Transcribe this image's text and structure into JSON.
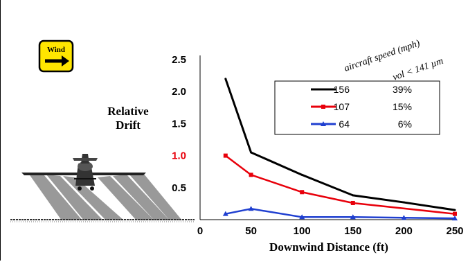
{
  "wind_badge": {
    "label": "Wind",
    "fill": "#ffe600",
    "arrow_icon": "arrow-right-icon"
  },
  "chart_data": {
    "type": "line",
    "xlabel": "Downwind Distance (ft)",
    "ylabel_lines": [
      "Relative",
      "Drift"
    ],
    "xlim": [
      0,
      250
    ],
    "ylim": [
      0,
      2.5
    ],
    "x_ticks": [
      {
        "value": 0,
        "label": "0"
      },
      {
        "value": 50,
        "label": "50"
      },
      {
        "value": 100,
        "label": "100"
      },
      {
        "value": 150,
        "label": "150"
      },
      {
        "value": 200,
        "label": "200"
      },
      {
        "value": 250,
        "label": "250"
      }
    ],
    "y_ticks": [
      {
        "value": 0.5,
        "label": "0.5",
        "color": "#000000"
      },
      {
        "value": 1.0,
        "label": "1.0",
        "color": "#e8000b"
      },
      {
        "value": 1.5,
        "label": "1.5",
        "color": "#000000"
      },
      {
        "value": 2.0,
        "label": "2.0",
        "color": "#000000"
      },
      {
        "value": 2.5,
        "label": "2.5",
        "color": "#000000"
      }
    ],
    "legend_header": [
      "aircraft speed (mph)",
      "vol < 141 µm"
    ],
    "legend_placement": "top-right",
    "series": [
      {
        "name": "156",
        "pct": "39%",
        "color": "#000000",
        "marker": "none",
        "x": [
          25,
          50,
          100,
          150,
          200,
          250
        ],
        "y": [
          2.2,
          1.05,
          0.7,
          0.38,
          0.27,
          0.15
        ]
      },
      {
        "name": "107",
        "pct": "15%",
        "color": "#e8000b",
        "marker": "square",
        "x": [
          25,
          50,
          100,
          150,
          250
        ],
        "y": [
          1.0,
          0.7,
          0.43,
          0.26,
          0.09
        ]
      },
      {
        "name": "64",
        "pct": "6%",
        "color": "#1f3fd0",
        "marker": "triangle",
        "x": [
          25,
          50,
          100,
          150,
          200,
          250
        ],
        "y": [
          0.09,
          0.17,
          0.04,
          0.04,
          0.03,
          0.02
        ]
      }
    ]
  }
}
